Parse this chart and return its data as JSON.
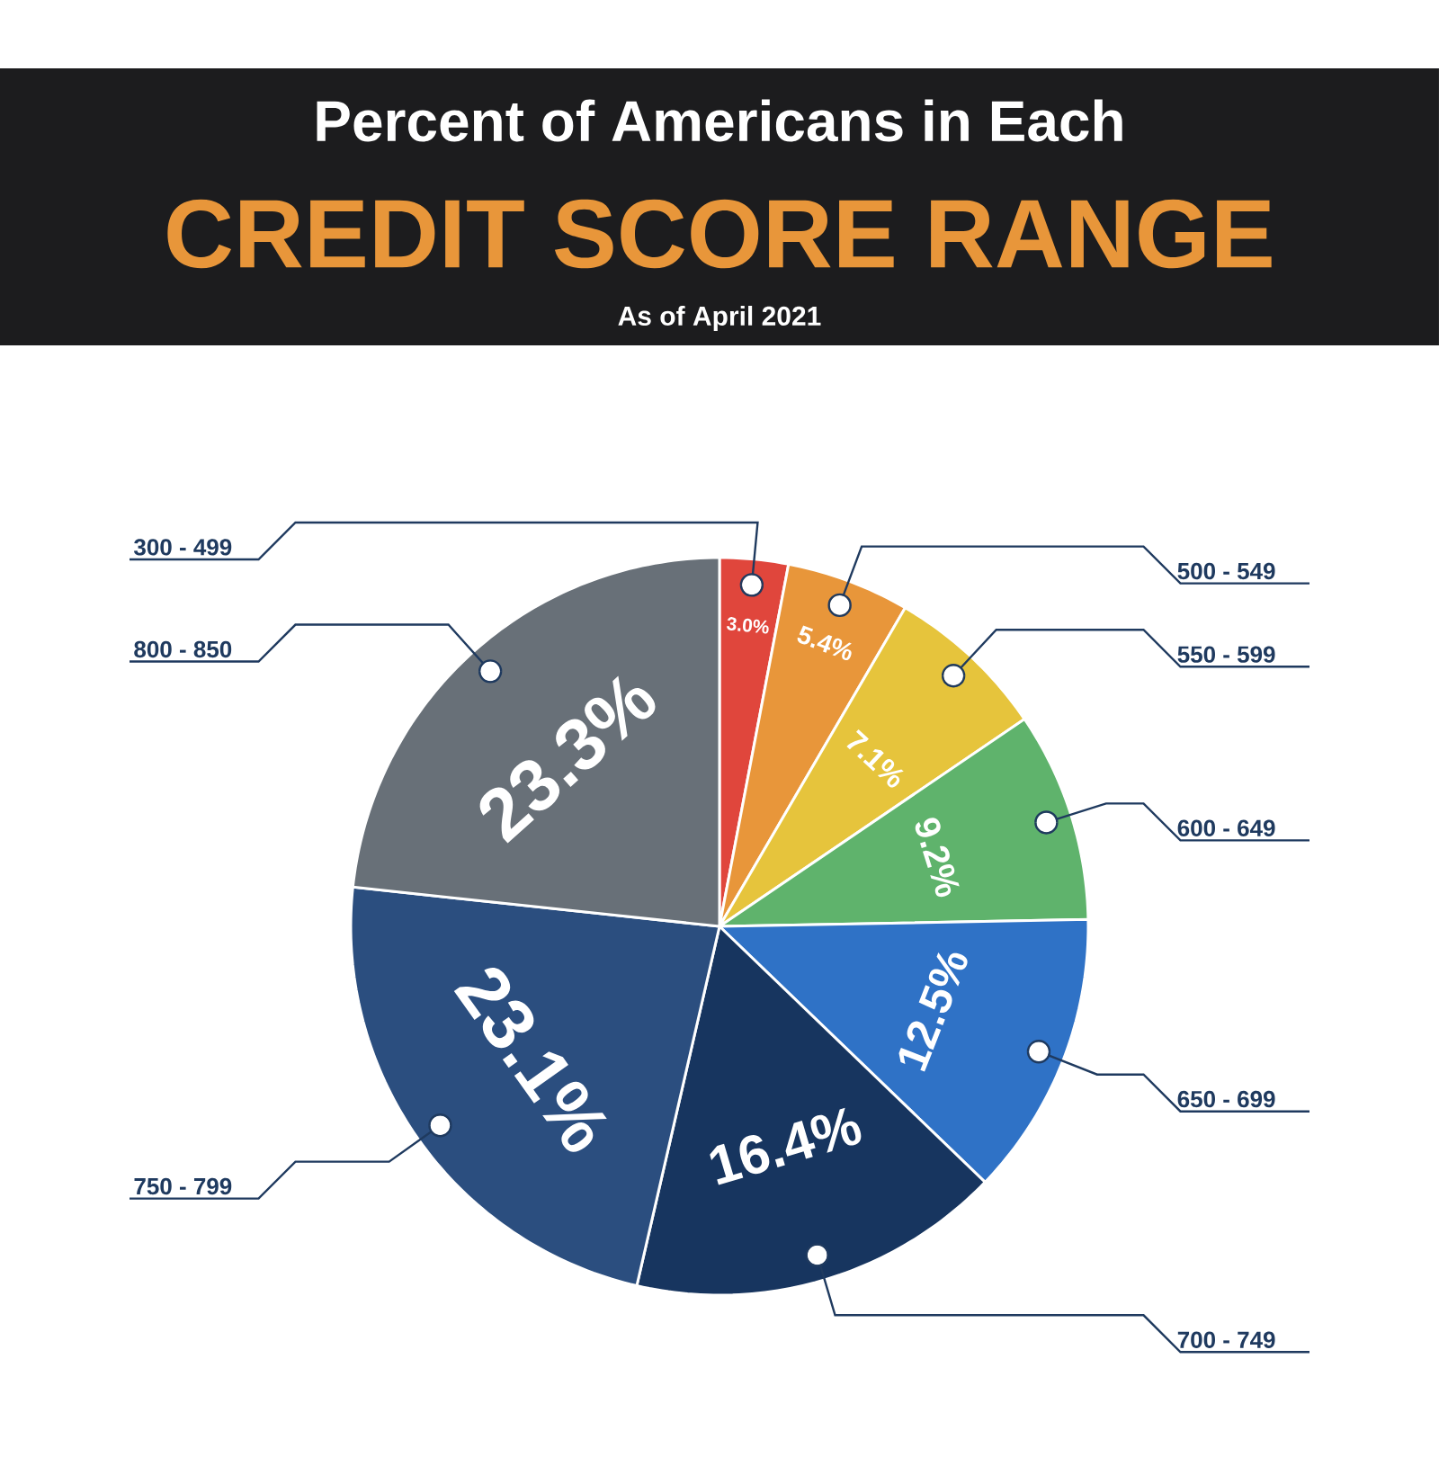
{
  "chart_data": {
    "type": "pie",
    "title": "Percent of Americans in Each",
    "subtitle": "CREDIT SCORE RANGE",
    "annotations": [
      "As of April 2021"
    ],
    "categories": [
      "300 - 499",
      "500 - 549",
      "550 - 599",
      "600 - 649",
      "650 - 699",
      "700 - 749",
      "750 - 799",
      "800 - 850"
    ],
    "values": [
      3.0,
      5.4,
      7.1,
      9.2,
      12.5,
      16.4,
      23.1,
      23.3
    ],
    "value_labels": [
      "3.0%",
      "5.4%",
      "7.1%",
      "9.2%",
      "12.5%",
      "16.4%",
      "23.1%",
      "23.3%"
    ],
    "colors": [
      "#e0463c",
      "#e8963a",
      "#e6c43c",
      "#5fb36c",
      "#2f72c6",
      "#17355f",
      "#2b4e7f",
      "#687078"
    ]
  }
}
